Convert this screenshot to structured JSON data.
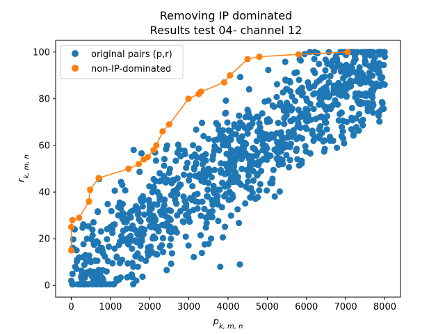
{
  "chart_data": {
    "type": "scatter",
    "title": "Removing IP dominated",
    "subtitle": "Results test 04- channel 12",
    "xlabel_base": "p",
    "xlabel_sub": "k, m, n",
    "ylabel_base": "r",
    "ylabel_sub": "k, m, n",
    "xlim": [
      -400,
      8400
    ],
    "ylim": [
      -5,
      105
    ],
    "xticks": [
      0,
      1000,
      2000,
      3000,
      4000,
      5000,
      6000,
      7000,
      8000
    ],
    "yticks": [
      0,
      20,
      40,
      60,
      80,
      100
    ],
    "grid": false,
    "legend_position": "upper-left",
    "colors": {
      "series0": "#1f77b4",
      "series1": "#ff7f0e"
    },
    "series": [
      {
        "name": "original pairs (p,r)",
        "style": "markers",
        "point_count": 1000,
        "distribution": "dense positive-correlated cloud from (0,0) to (8000,100); approx r = 0.0115*p + 5 with spread +/-20",
        "sample_points": [
          [
            0,
            2
          ],
          [
            30,
            5
          ],
          [
            100,
            8
          ],
          [
            200,
            12
          ],
          [
            300,
            4
          ],
          [
            400,
            20
          ],
          [
            500,
            10
          ],
          [
            700,
            15
          ],
          [
            900,
            6
          ],
          [
            1000,
            25
          ],
          [
            1200,
            30
          ],
          [
            1500,
            20
          ],
          [
            1700,
            8
          ],
          [
            2000,
            35
          ],
          [
            2200,
            40
          ],
          [
            2500,
            28
          ],
          [
            3000,
            45
          ],
          [
            3200,
            55
          ],
          [
            3500,
            50
          ],
          [
            3800,
            8
          ],
          [
            4000,
            60
          ],
          [
            4300,
            9
          ],
          [
            4500,
            65
          ],
          [
            5000,
            70
          ],
          [
            5500,
            75
          ],
          [
            6000,
            80
          ],
          [
            6500,
            85
          ],
          [
            7000,
            90
          ],
          [
            7500,
            95
          ],
          [
            8000,
            98
          ]
        ]
      },
      {
        "name": "non-IP-dominated",
        "style": "line-markers",
        "points": [
          [
            0,
            15
          ],
          [
            0,
            25
          ],
          [
            30,
            28
          ],
          [
            200,
            29
          ],
          [
            450,
            36
          ],
          [
            480,
            41
          ],
          [
            700,
            46
          ],
          [
            1460,
            50
          ],
          [
            1720,
            52
          ],
          [
            1850,
            54
          ],
          [
            1950,
            55
          ],
          [
            2100,
            58
          ],
          [
            2170,
            60
          ],
          [
            2330,
            66
          ],
          [
            2500,
            69
          ],
          [
            2990,
            80
          ],
          [
            3250,
            82
          ],
          [
            3310,
            83
          ],
          [
            3900,
            87
          ],
          [
            4050,
            90
          ],
          [
            4500,
            97
          ],
          [
            4800,
            98
          ],
          [
            5800,
            99
          ],
          [
            7050,
            100
          ]
        ]
      }
    ]
  }
}
